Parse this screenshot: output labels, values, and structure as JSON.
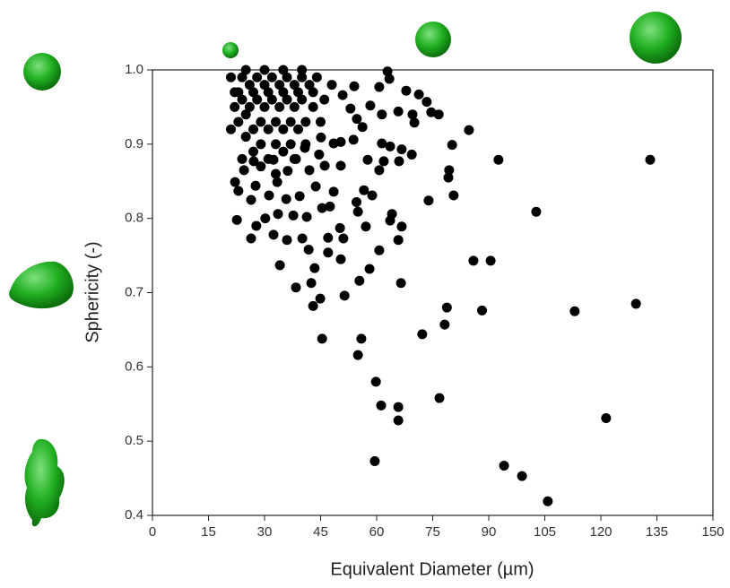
{
  "chart_data": {
    "type": "scatter",
    "xlabel": "Equivalent Diameter (µm)",
    "ylabel": "Sphericity (-)",
    "color": "#000000",
    "xlim": [
      0,
      150
    ],
    "xticks": [
      0,
      15,
      30,
      45,
      60,
      75,
      90,
      105,
      120,
      135,
      150
    ],
    "ylim": [
      0.4,
      1.0
    ],
    "yticks": [
      0.4,
      0.5,
      0.6,
      0.7,
      0.8,
      0.9,
      {
        "value": 1.0,
        "label": "1.0"
      }
    ],
    "x": [
      133.2,
      92.6,
      102.7,
      113.0,
      129.4,
      121.4,
      90.5,
      85.9,
      88.2,
      105.8,
      98.9,
      94.1,
      84.7,
      79.4,
      80.6,
      80.2,
      73.9,
      79.2,
      78.8,
      78.2,
      72.2,
      76.8,
      59.5,
      65.8,
      65.8,
      61.2,
      59.8,
      55.9,
      55,
      45.4,
      66.5,
      60.7,
      58.1,
      55.4,
      51.4,
      44.9,
      43,
      34.1,
      38.4,
      42.5,
      43.4,
      41.8,
      50.4,
      47,
      65.8,
      66.7,
      64.1,
      63.6,
      57.1,
      55,
      56.6,
      58.8,
      54.6,
      50.2,
      51.1,
      47,
      40.1,
      36,
      32.4,
      26.4,
      22.6,
      27.8,
      30.2,
      33.6,
      37.7,
      41.3,
      45.4,
      47.5,
      48.5,
      43.7,
      39.4,
      35.8,
      31.2,
      26.4,
      23,
      22.1,
      27.6,
      33.4,
      36.2,
      42,
      46.1,
      50.4,
      57.6,
      61.9,
      66,
      61.4,
      63.6,
      66.7,
      60.7,
      69.4,
      70.1,
      69.6,
      73.4,
      76.6,
      74.6,
      71.3,
      67.9,
      65.8,
      61.4,
      58.3,
      56.2,
      53.8,
      50.4,
      54.7,
      53,
      50.9,
      54,
      62.9,
      63.4,
      60.7,
      45.1,
      40.8,
      48.5,
      44.6,
      38.4,
      32.4,
      27.1,
      24.5,
      21,
      22,
      22,
      23,
      21,
      24,
      24,
      25,
      25,
      26,
      26,
      27,
      27,
      28,
      28,
      29,
      29,
      30,
      30,
      31,
      31,
      32,
      32,
      33,
      33,
      34,
      34,
      35,
      35,
      36,
      36,
      37,
      37,
      38,
      38,
      39,
      40,
      40,
      41,
      41,
      42,
      43,
      44,
      45,
      46,
      48,
      23,
      27,
      31,
      35,
      39,
      43,
      25,
      30,
      35,
      40,
      29,
      33,
      24,
      38
    ],
    "values": [
      0.879,
      0.879,
      0.809,
      0.675,
      0.685,
      0.531,
      0.743,
      0.743,
      0.676,
      0.419,
      0.453,
      0.467,
      0.919,
      0.865,
      0.831,
      0.899,
      0.824,
      0.855,
      0.68,
      0.657,
      0.644,
      0.558,
      0.473,
      0.546,
      0.528,
      0.548,
      0.58,
      0.638,
      0.616,
      0.638,
      0.713,
      0.757,
      0.732,
      0.716,
      0.696,
      0.692,
      0.682,
      0.737,
      0.707,
      0.713,
      0.733,
      0.758,
      0.745,
      0.754,
      0.771,
      0.789,
      0.806,
      0.797,
      0.789,
      0.809,
      0.838,
      0.831,
      0.822,
      0.787,
      0.773,
      0.774,
      0.773,
      0.771,
      0.778,
      0.773,
      0.798,
      0.79,
      0.8,
      0.806,
      0.804,
      0.802,
      0.814,
      0.816,
      0.836,
      0.843,
      0.83,
      0.826,
      0.831,
      0.825,
      0.837,
      0.849,
      0.844,
      0.849,
      0.864,
      0.865,
      0.871,
      0.871,
      0.879,
      0.877,
      0.877,
      0.901,
      0.897,
      0.893,
      0.865,
      0.886,
      0.929,
      0.94,
      0.957,
      0.94,
      0.943,
      0.967,
      0.972,
      0.944,
      0.94,
      0.952,
      0.923,
      0.906,
      0.903,
      0.934,
      0.948,
      0.966,
      0.978,
      0.998,
      0.988,
      0.977,
      0.909,
      0.895,
      0.901,
      0.886,
      0.88,
      0.879,
      0.877,
      0.865,
      0.99,
      0.97,
      0.95,
      0.93,
      0.92,
      0.99,
      0.96,
      0.94,
      0.91,
      0.98,
      0.95,
      0.92,
      0.89,
      0.99,
      0.96,
      0.93,
      0.9,
      0.98,
      0.95,
      0.92,
      0.88,
      0.99,
      0.96,
      0.93,
      0.9,
      0.98,
      0.95,
      0.92,
      0.89,
      0.99,
      0.96,
      0.93,
      0.9,
      0.98,
      0.95,
      0.92,
      0.99,
      0.96,
      0.93,
      0.9,
      0.98,
      0.95,
      0.99,
      0.93,
      0.96,
      0.98,
      0.97,
      0.97,
      0.97,
      0.97,
      0.97,
      0.97,
      1.0,
      1.0,
      1.0,
      1.0,
      0.87,
      0.86,
      0.88,
      0.88
    ]
  }
}
